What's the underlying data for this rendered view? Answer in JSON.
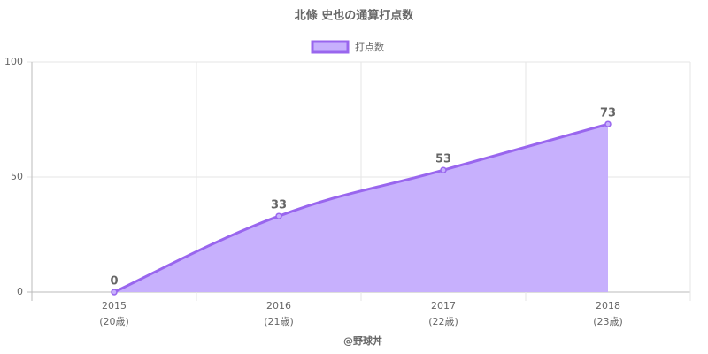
{
  "chart_data": {
    "type": "area",
    "title": "北條 史也の通算打点数",
    "categories": [
      "2015",
      "2016",
      "2017",
      "2018"
    ],
    "category_sublabels": [
      "(20歳)",
      "(21歳)",
      "(22歳)",
      "(23歳)"
    ],
    "x_label": "@野球丼",
    "series": [
      {
        "name": "打点数",
        "color": "#9966ee",
        "fill": "#c7b0fd",
        "values": [
          0,
          33,
          53,
          73
        ]
      }
    ],
    "ylim": [
      0,
      100
    ],
    "yticks": [
      0,
      50,
      100
    ],
    "grid": true,
    "legend": "top"
  }
}
